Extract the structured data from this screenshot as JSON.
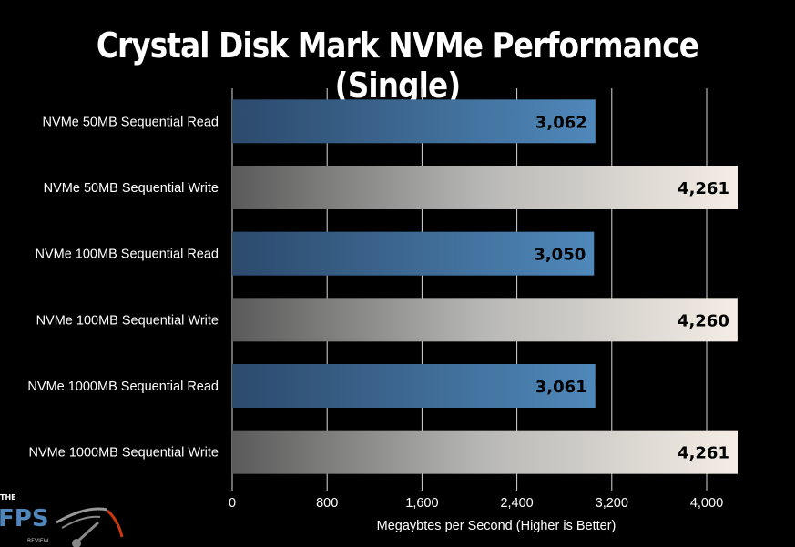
{
  "chart_data": {
    "type": "bar",
    "orientation": "horizontal",
    "title": "Crystal Disk Mark NVMe Performance (Single)",
    "xlabel": "Megaybtes per Second (Higher is Better)",
    "ylabel": "",
    "categories": [
      "NVMe 50MB Sequential Read",
      "NVMe 50MB Sequential Write",
      "NVMe 100MB Sequential Read",
      "NVMe 100MB Sequential Write",
      "NVMe 1000MB Sequential Read",
      "NVMe 1000MB Sequential Write"
    ],
    "values": [
      3062,
      4261,
      3050,
      4260,
      3061,
      4261
    ],
    "value_labels": [
      "3,062",
      "4,261",
      "3,050",
      "4,260",
      "3,061",
      "4,261"
    ],
    "xticks": [
      0,
      800,
      1600,
      2400,
      3200,
      4000
    ],
    "xtick_labels": [
      "0",
      "800",
      "1,600",
      "2,400",
      "3,200",
      "4,000"
    ],
    "xlim": [
      0,
      4000
    ],
    "grid": "vertical",
    "colors": {
      "read": "#4a7fb0",
      "write": "#e8e4dc",
      "background": "#000000"
    }
  },
  "logo": {
    "text": "THE FPS REVIEW"
  }
}
